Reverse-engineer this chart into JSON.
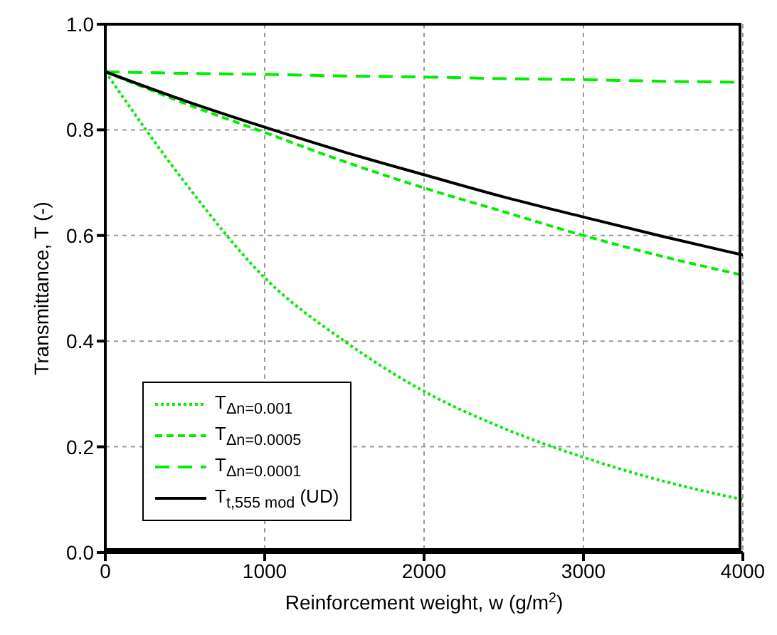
{
  "chart_data": {
    "type": "line",
    "xlabel": "Reinforcement weight, w (g/m$^{2}$)",
    "ylabel": "Transmittance, T (-)",
    "x": [
      0,
      500,
      1000,
      1500,
      2000,
      2500,
      3000,
      3500,
      4000
    ],
    "series": [
      {
        "name": "T$_{Δn=0.001}$",
        "color": "#00ee00",
        "line_style": "dotted",
        "values": [
          0.91,
          0.7,
          0.52,
          0.4,
          0.305,
          0.235,
          0.18,
          0.135,
          0.1
        ]
      },
      {
        "name": "T$_{Δn=0.0005}$",
        "color": "#00ee00",
        "line_style": "dashed",
        "values": [
          0.91,
          0.85,
          0.795,
          0.74,
          0.69,
          0.645,
          0.6,
          0.56,
          0.525
        ]
      },
      {
        "name": "T$_{Δn=0.0001}$",
        "color": "#00ee00",
        "line_style": "longdash",
        "values": [
          0.91,
          0.907,
          0.905,
          0.902,
          0.9,
          0.897,
          0.895,
          0.892,
          0.89
        ]
      },
      {
        "name": "T$_{t,555 mod}$ (UD)",
        "color": "#000000",
        "line_style": "solid",
        "values": [
          0.91,
          0.855,
          0.805,
          0.758,
          0.715,
          0.673,
          0.635,
          0.598,
          0.563
        ]
      }
    ],
    "xlim": [
      0,
      4000
    ],
    "xticks": [
      0,
      1000,
      2000,
      3000,
      4000
    ],
    "ylim": [
      0,
      1.0
    ],
    "yticks": [
      {
        "value": 0,
        "label": "0.0"
      },
      0.2,
      0.4,
      0.6,
      0.8,
      {
        "value": 1.0,
        "label": "1.0"
      }
    ],
    "grid": true,
    "legend": "bottom left",
    "marker": "none"
  }
}
